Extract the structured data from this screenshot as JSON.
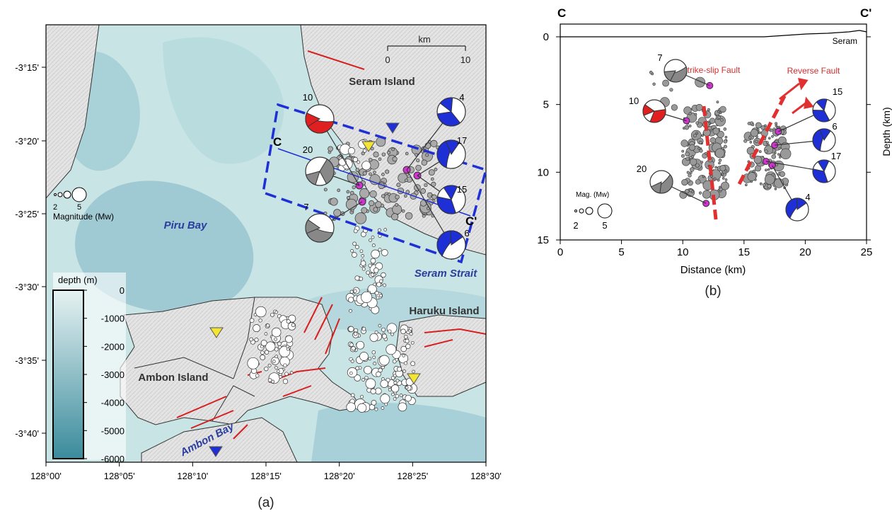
{
  "panels": {
    "a": "(a)",
    "b": "(b)"
  },
  "map": {
    "x_ticks": [
      "128°00'",
      "128°05'",
      "128°10'",
      "128°15'",
      "128°20'",
      "128°25'",
      "128°30'"
    ],
    "y_ticks": [
      "-3°15'",
      "-3°20'",
      "-3°25'",
      "-3°30'",
      "-3°35'",
      "-3°40'"
    ],
    "labels": {
      "seram_island": "Seram Island",
      "haruku_island": "Haruku Island",
      "ambon_island": "Ambon Island",
      "piru_bay": "Piru Bay",
      "seram_strait": "Seram Strait",
      "ambon_bay": "Ambon Bay"
    },
    "scale_bar": {
      "unit": "km",
      "min": "0",
      "max": "10"
    },
    "section": {
      "start": "C",
      "end": "C'"
    },
    "magnitude_legend": {
      "label": "Magnitude (Mw)",
      "min": "2",
      "max": "5"
    },
    "colorbar": {
      "title": "depth (m)",
      "ticks": [
        "0",
        "-1000",
        "-2000",
        "-3000",
        "-4000",
        "-5000",
        "-6000"
      ]
    },
    "focal_mechanisms": [
      {
        "id": "10",
        "color": "#e02020"
      },
      {
        "id": "20",
        "color": "#888888"
      },
      {
        "id": "7",
        "color": "#888888"
      },
      {
        "id": "4",
        "color": "#1f2fd6"
      },
      {
        "id": "17",
        "color": "#1f2fd6"
      },
      {
        "id": "15",
        "color": "#1f2fd6"
      },
      {
        "id": "6",
        "color": "#1f2fd6"
      }
    ]
  },
  "section": {
    "start": "C",
    "end": "C'",
    "surface_label": "Seram",
    "xlabel": "Distance (km)",
    "ylabel": "Depth (km)",
    "x_ticks": [
      "0",
      "5",
      "10",
      "15",
      "20",
      "25"
    ],
    "y_ticks": [
      "0",
      "5",
      "10",
      "15"
    ],
    "annotations": {
      "strike_slip": "Strike-slip Fault",
      "reverse": "Reverse Fault"
    },
    "magnitude_legend": {
      "label": "Mag. (Mw)",
      "min": "2",
      "max": "5"
    },
    "focal_mechanisms": [
      {
        "id": "7",
        "color": "#888888",
        "distance_km": 12.2,
        "depth_km": 3.6
      },
      {
        "id": "10",
        "color": "#e02020",
        "distance_km": 10.3,
        "depth_km": 6.2
      },
      {
        "id": "20",
        "color": "#888888",
        "distance_km": 11.9,
        "depth_km": 12.3
      },
      {
        "id": "15",
        "color": "#1f2fd6",
        "distance_km": 17.8,
        "depth_km": 7.0
      },
      {
        "id": "6",
        "color": "#1f2fd6",
        "distance_km": 17.5,
        "depth_km": 8.0
      },
      {
        "id": "17",
        "color": "#1f2fd6",
        "distance_km": 16.8,
        "depth_km": 9.2
      },
      {
        "id": "4",
        "color": "#1f2fd6",
        "distance_km": 17.3,
        "depth_km": 9.5
      }
    ]
  }
}
